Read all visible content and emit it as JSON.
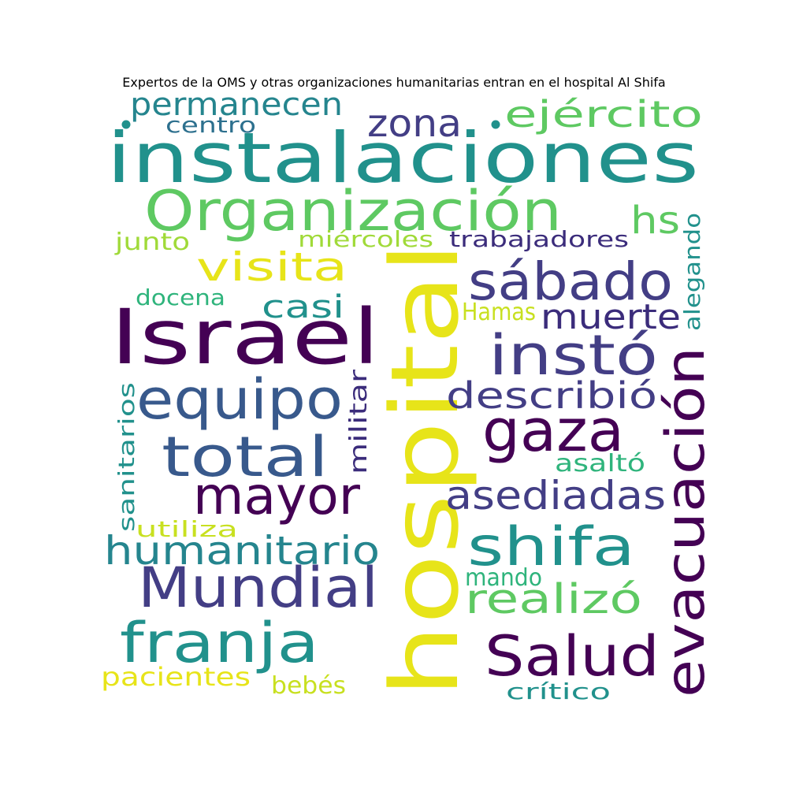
{
  "title": "Expertos de la OMS y otras organizaciones humanitarias entran en el hospital Al Shifa",
  "palette": {
    "dark_purple": "#440154",
    "indigo": "#3b2c7b",
    "purple_blue": "#433e85",
    "slate_blue": "#38598c",
    "steel_blue": "#2d708e",
    "teal": "#21918c",
    "teal_green": "#25858e",
    "green": "#2fb47c",
    "light_green": "#5ec962",
    "lime": "#a0da39",
    "yellow_green": "#c8e020",
    "yellow": "#e7e419"
  },
  "words": [
    {
      "text": "instalaciones",
      "color": "teal"
    },
    {
      "text": "Organización",
      "color": "light_green"
    },
    {
      "text": "permanecen",
      "color": "teal_green"
    },
    {
      "text": "zona",
      "color": "purple_blue"
    },
    {
      "text": "ejército",
      "color": "light_green"
    },
    {
      "text": "centro",
      "color": "steel_blue"
    },
    {
      "text": "hs",
      "color": "light_green"
    },
    {
      "text": "junto",
      "color": "lime"
    },
    {
      "text": "miércoles",
      "color": "lime"
    },
    {
      "text": "trabajadores",
      "color": "indigo"
    },
    {
      "text": "visita",
      "color": "yellow"
    },
    {
      "text": "sábado",
      "color": "purple_blue"
    },
    {
      "text": "docena",
      "color": "green"
    },
    {
      "text": "casi",
      "color": "teal"
    },
    {
      "text": "Hamas",
      "color": "yellow_green"
    },
    {
      "text": "muerte",
      "color": "indigo"
    },
    {
      "text": "alegando",
      "color": "teal"
    },
    {
      "text": "Israel",
      "color": "dark_purple"
    },
    {
      "text": "hospital",
      "color": "yellow"
    },
    {
      "text": "instó",
      "color": "purple_blue"
    },
    {
      "text": "equipo",
      "color": "slate_blue"
    },
    {
      "text": "describió",
      "color": "purple_blue"
    },
    {
      "text": "evacuación",
      "color": "dark_purple"
    },
    {
      "text": "sanitarios",
      "color": "teal"
    },
    {
      "text": "militar",
      "color": "indigo"
    },
    {
      "text": "gaza",
      "color": "dark_purple"
    },
    {
      "text": "total",
      "color": "slate_blue"
    },
    {
      "text": "asaltó",
      "color": "green"
    },
    {
      "text": "mayor",
      "color": "dark_purple"
    },
    {
      "text": "asediadas",
      "color": "purple_blue"
    },
    {
      "text": "utiliza",
      "color": "yellow_green"
    },
    {
      "text": "humanitario",
      "color": "teal_green"
    },
    {
      "text": "shifa",
      "color": "teal"
    },
    {
      "text": "mando",
      "color": "green"
    },
    {
      "text": "Mundial",
      "color": "purple_blue"
    },
    {
      "text": "realizó",
      "color": "light_green"
    },
    {
      "text": "franja",
      "color": "teal"
    },
    {
      "text": "Salud",
      "color": "dark_purple"
    },
    {
      "text": "pacientes",
      "color": "yellow"
    },
    {
      "text": "bebés",
      "color": "yellow_green"
    },
    {
      "text": "crítico",
      "color": "teal"
    }
  ]
}
